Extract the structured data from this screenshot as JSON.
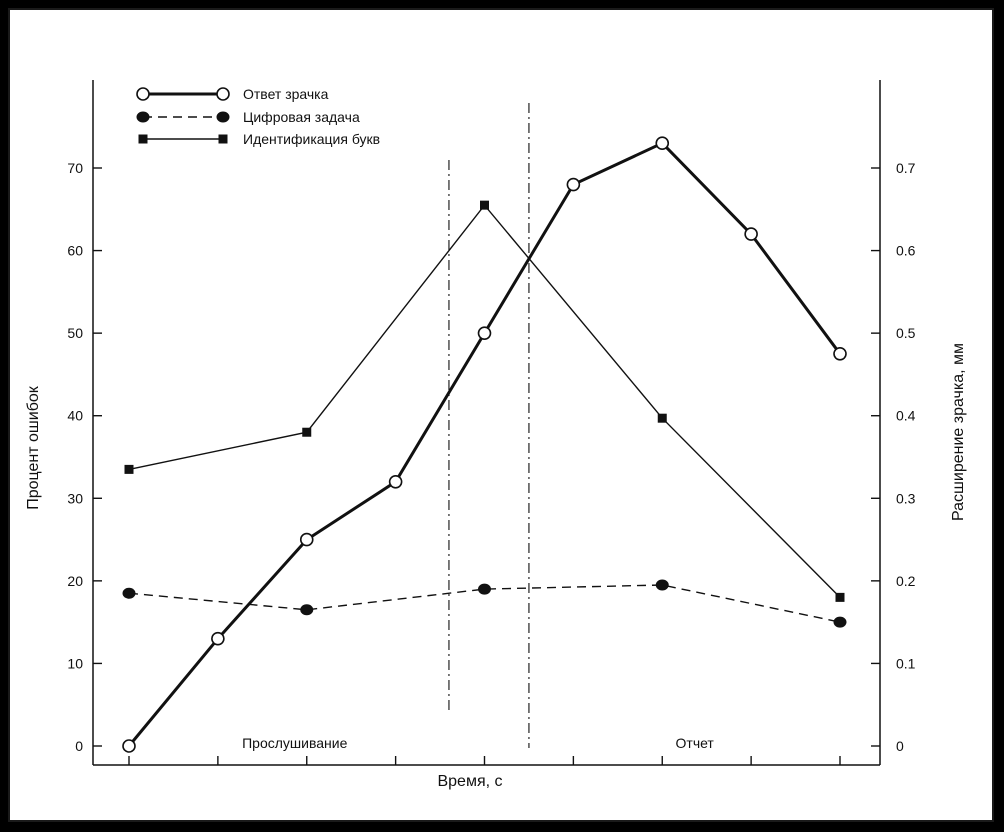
{
  "chart_data": {
    "type": "line",
    "title": "",
    "xlabel": "Время, с",
    "ylabel_left": "Процент ошибок",
    "ylabel_right": "Расширение зрачка, мм",
    "ylim_left": [
      0,
      80
    ],
    "ylim_right": [
      0,
      0.8
    ],
    "grid": false,
    "legend_position": "top-left",
    "x": [
      0,
      1,
      2,
      3,
      4,
      5,
      6,
      7,
      8
    ],
    "yticks_left": [
      "0",
      "10",
      "20",
      "30",
      "40",
      "50",
      "60",
      "70"
    ],
    "yticks_right": [
      "0",
      "0.1",
      "0.2",
      "0.3",
      "0.4",
      "0.5",
      "0.6",
      "0.7"
    ],
    "series": [
      {
        "name": "Ответ зрачка",
        "axis": "right",
        "marker": "open-circle",
        "line": "thick-solid",
        "x": [
          0,
          1,
          2,
          3,
          4,
          5,
          6,
          7,
          8
        ],
        "values": [
          0.0,
          0.13,
          0.25,
          0.32,
          0.5,
          0.68,
          0.73,
          0.62,
          0.475
        ]
      },
      {
        "name": "Цифровая задача",
        "axis": "left",
        "marker": "filled-circle",
        "line": "dashed",
        "x": [
          0,
          2,
          4,
          6,
          8
        ],
        "values": [
          18.5,
          16.5,
          19.0,
          19.5,
          15.0
        ]
      },
      {
        "name": "Идентификация букв",
        "axis": "left",
        "marker": "filled-square",
        "line": "thin-solid",
        "x": [
          0,
          2,
          4,
          6,
          8
        ],
        "values": [
          33.5,
          38.0,
          65.5,
          39.7,
          18.0
        ]
      }
    ],
    "phase_markers": [
      {
        "x": 3.6,
        "style": "dash-dot"
      },
      {
        "x": 4.5,
        "style": "dash-dot"
      }
    ],
    "annotations": [
      {
        "text": "Прослушивание",
        "x": 2.0
      },
      {
        "text": "Отчет",
        "x": 6.5
      }
    ]
  }
}
